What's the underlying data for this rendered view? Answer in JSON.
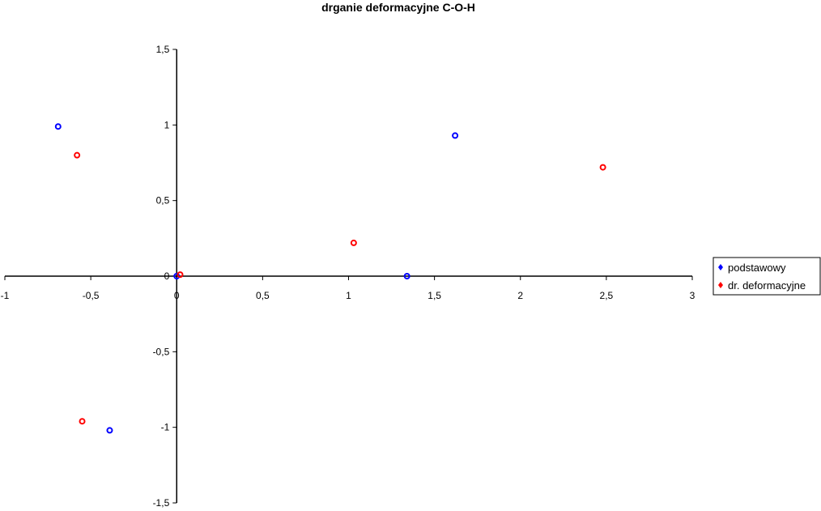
{
  "chart_data": {
    "type": "scatter",
    "title": "drganie deformacyjne C-O-H",
    "xlabel": "",
    "ylabel": "",
    "xlim": [
      -1,
      3
    ],
    "ylim": [
      -1.5,
      1.5
    ],
    "x_ticks": [
      -1,
      -0.5,
      0,
      0.5,
      1,
      1.5,
      2,
      2.5,
      3
    ],
    "x_tick_labels": [
      "-1",
      "-0,5",
      "0",
      "0,5",
      "1",
      "1,5",
      "2",
      "2,5",
      "3"
    ],
    "y_ticks": [
      1.5,
      1,
      0.5,
      0,
      -0.5,
      -1,
      -1.5
    ],
    "y_tick_labels": [
      "1,5",
      "1",
      "0,5",
      "0",
      "-0,5",
      "-1",
      "-1,5"
    ],
    "grid": false,
    "legend_position": "right",
    "series": [
      {
        "name": "podstawowy",
        "color": "#0000ff",
        "points": [
          [
            -0.69,
            0.99
          ],
          [
            0.0,
            0.0
          ],
          [
            1.34,
            0.0
          ],
          [
            1.62,
            0.93
          ],
          [
            -0.39,
            -1.02
          ]
        ]
      },
      {
        "name": "dr. deformacyjne",
        "color": "#ff0000",
        "points": [
          [
            -0.58,
            0.8
          ],
          [
            0.02,
            0.01
          ],
          [
            1.03,
            0.22
          ],
          [
            2.48,
            0.72
          ],
          [
            -0.55,
            -0.96
          ]
        ]
      }
    ]
  }
}
